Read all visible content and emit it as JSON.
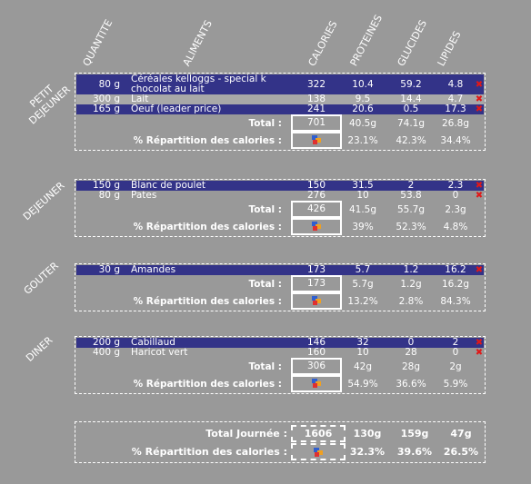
{
  "headers": [
    "QUANTITE",
    "ALIMENTS",
    "CALORIES",
    "PROTEINES",
    "GLUCIDES",
    "LIPIDES"
  ],
  "meals": [
    {
      "label": [
        "PETIT",
        "DEJEUNER"
      ],
      "items": [
        {
          "quantity": "80 g",
          "name": "Céréales kelloggs - special k chocolat au lait",
          "calories": "322",
          "proteines": "10.4",
          "glucides": "59.2",
          "lipides": "4.8"
        },
        {
          "quantity": "300 g",
          "name": "Lait",
          "calories": "138",
          "proteines": "9.5",
          "glucides": "14.4",
          "lipides": "4.7"
        },
        {
          "quantity": "165 g",
          "name": "Oeuf (leader price)",
          "calories": "241",
          "proteines": "20.6",
          "glucides": "0.5",
          "lipides": "17.3"
        }
      ],
      "total": {
        "label": "Total :",
        "calories": "701",
        "proteines": "40.5g",
        "glucides": "74.1g",
        "lipides": "26.8g"
      },
      "repartition": {
        "label": "% Répartition des calories :",
        "proteines": "23.1%",
        "glucides": "42.3%",
        "lipides": "34.4%"
      }
    },
    {
      "label": [
        "DEJEUNER"
      ],
      "items": [
        {
          "quantity": "150 g",
          "name": "Blanc de poulet",
          "calories": "150",
          "proteines": "31.5",
          "glucides": "2",
          "lipides": "2.3"
        },
        {
          "quantity": "80 g",
          "name": "Pates",
          "calories": "276",
          "proteines": "10",
          "glucides": "53.8",
          "lipides": "0"
        }
      ],
      "total": {
        "label": "Total :",
        "calories": "426",
        "proteines": "41.5g",
        "glucides": "55.7g",
        "lipides": "2.3g"
      },
      "repartition": {
        "label": "% Répartition des calories :",
        "proteines": "39%",
        "glucides": "52.3%",
        "lipides": "4.8%"
      }
    },
    {
      "label": [
        "GOUTER"
      ],
      "items": [
        {
          "quantity": "30 g",
          "name": "Amandes",
          "calories": "173",
          "proteines": "5.7",
          "glucides": "1.2",
          "lipides": "16.2"
        }
      ],
      "total": {
        "label": "Total :",
        "calories": "173",
        "proteines": "5.7g",
        "glucides": "1.2g",
        "lipides": "16.2g"
      },
      "repartition": {
        "label": "% Répartition des calories :",
        "proteines": "13.2%",
        "glucides": "2.8%",
        "lipides": "84.3%"
      }
    },
    {
      "label": [
        "DINER"
      ],
      "items": [
        {
          "quantity": "200 g",
          "name": "Cabillaud",
          "calories": "146",
          "proteines": "32",
          "glucides": "0",
          "lipides": "2"
        },
        {
          "quantity": "400 g",
          "name": "Haricot vert",
          "calories": "160",
          "proteines": "10",
          "glucides": "28",
          "lipides": "0"
        }
      ],
      "total": {
        "label": "Total :",
        "calories": "306",
        "proteines": "42g",
        "glucides": "28g",
        "lipides": "2g"
      },
      "repartition": {
        "label": "% Répartition des calories :",
        "proteines": "54.9%",
        "glucides": "36.6%",
        "lipides": "5.9%"
      }
    }
  ],
  "day": {
    "total": {
      "label": "Total Journée :",
      "calories": "1606",
      "proteines": "130g",
      "glucides": "159g",
      "lipides": "47g"
    },
    "repartition": {
      "label": "% Répartition des calories :",
      "proteines": "32.3%",
      "glucides": "39.6%",
      "lipides": "26.5%"
    }
  }
}
